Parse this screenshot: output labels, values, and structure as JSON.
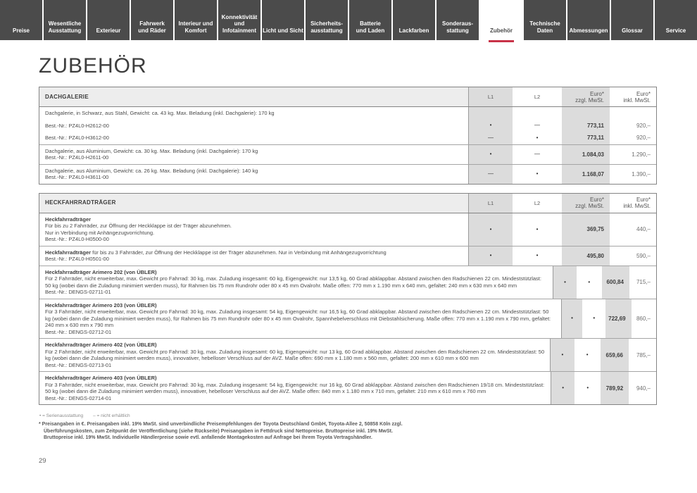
{
  "page": {
    "title": "ZUBEHÖR",
    "page_number": "29"
  },
  "tabs": [
    {
      "label": "Preise"
    },
    {
      "label": "Wesentliche\nAusstattung"
    },
    {
      "label": "Exterieur"
    },
    {
      "label": "Fahrwerk\nund Räder"
    },
    {
      "label": "Interieur und\nKomfort"
    },
    {
      "label": "Konnektivität\nund\nInfotainment"
    },
    {
      "label": "Licht und Sicht"
    },
    {
      "label": "Sicherheits-\nausstattung"
    },
    {
      "label": "Batterie\nund Laden"
    },
    {
      "label": "Lackfarben"
    },
    {
      "label": "Sonderaus-\nstattung"
    },
    {
      "label": "Zubehör",
      "active": true
    },
    {
      "label": "Technische\nDaten"
    },
    {
      "label": "Abmessungen"
    },
    {
      "label": "Glossar"
    },
    {
      "label": "Service"
    }
  ],
  "accent_color": "#c83248",
  "columns": {
    "l1": "L1",
    "l2": "L2",
    "net": "Euro*\nzzgl. MwSt.",
    "gross": "Euro*\ninkl. MwSt."
  },
  "tables": [
    {
      "title": "DACHGALERIE",
      "rows": [
        {
          "title": "",
          "desc": "Dachgalerie, in Schwarz, aus Stahl, Gewicht: ca. 43 kg. Max. Beladung (inkl. Dachgalerie): 170 kg",
          "bestnr": "",
          "l1": "",
          "l2": "",
          "net": "",
          "gross": ""
        },
        {
          "title": "",
          "desc": "",
          "bestnr": "Best.-Nr.: PZ4L0-H2612-00",
          "l1": "•",
          "l2": "—",
          "net": "773,11",
          "gross": "920,–"
        },
        {
          "title": "",
          "desc": "",
          "bestnr": "Best.-Nr.: PZ4L0-H3612-00",
          "l1": "—",
          "l2": "•",
          "net": "773,11",
          "gross": "920,–"
        },
        {
          "title": "",
          "desc": "Dachgalerie, aus Aluminium, Gewicht: ca. 30 kg. Max. Beladung (inkl. Dachgalerie): 170 kg",
          "bestnr": "Best.-Nr.: PZ4L0-H2611-00",
          "l1": "•",
          "l2": "—",
          "net": "1.084,03",
          "gross": "1.290,–"
        },
        {
          "title": "",
          "desc": "Dachgalerie, aus Aluminium, Gewicht: ca. 26 kg. Max. Beladung (inkl. Dachgalerie): 140 kg",
          "bestnr": "Best.-Nr.: PZ4L0-H3611-00",
          "l1": "—",
          "l2": "•",
          "net": "1.168,07",
          "gross": "1.390,–"
        }
      ]
    },
    {
      "title": "HECKFAHRRADTRÄGER",
      "rows": [
        {
          "title": "Heckfahrradträger",
          "desc": "\nFür bis zu 2 Fahrräder, zur Öffnung der Heckklappe ist der Träger abzunehmen.\nNur in Verbindung mit Anhängezugvorrichtung.",
          "bestnr": "Best.-Nr.: PZ4L0-H0500-00",
          "l1": "•",
          "l2": "•",
          "net": "369,75",
          "gross": "440,–"
        },
        {
          "title": "Heckfahrradträger",
          "desc": " für bis zu 3 Fahrräder, zur Öffnung der Heckklappe ist der Träger abzunehmen. Nur in Verbindung mit Anhängezugvorrichtung",
          "bestnr": "Best.-Nr.: PZ4L0-H0501-00",
          "l1": "•",
          "l2": "•",
          "net": "495,80",
          "gross": "590,–"
        },
        {
          "title": "Heckfahrradträger Arimero 202 (von ÜBLER)",
          "desc": "\nFür 2 Fahrräder, nicht erweiterbar, max. Gewicht pro Fahrrad: 30 kg, max. Zuladung insgesamt: 60 kg, Eigengewicht: nur 13,5 kg, 60 Grad abklappbar. Abstand zwischen den Radschienen 22 cm. Mindeststützlast: 50 kg (wobei dann die Zuladung minimiert werden muss), für Rahmen bis 75 mm Rundrohr oder 80 x 45 mm Ovalrohr. Maße offen: 770 mm x 1.190 mm x 640 mm, gefaltet: 240 mm x 630 mm x 640 mm",
          "bestnr": "Best.-Nr.: DENGS-02711-01",
          "l1": "•",
          "l2": "•",
          "net": "600,84",
          "gross": "715,–"
        },
        {
          "title": "Heckfahrradträger Arimero 203 (von ÜBLER)",
          "desc": "\nFür 3 Fahrräder, nicht erweiterbar, max. Gewicht pro Fahrrad: 30 kg, max. Zuladung insgesamt: 54 kg, Eigengewicht: nur 16,5 kg, 60 Grad abklappbar. Abstand zwischen den Radschienen 22 cm. Mindeststützlast: 50 kg (wobei dann die Zuladung minimiert werden muss), für Rahmen bis 75 mm Rundrohr oder 80 x 45 mm Ovalrohr, Spannhebelverschluss mit Diebstahlsicherung. Maße offen: 770 mm x 1.190 mm x 790 mm, gefaltet: 240 mm x 630 mm x 790 mm",
          "bestnr": "Best.-Nr.: DENGS-02712-01",
          "l1": "•",
          "l2": "•",
          "net": "722,69",
          "gross": "860,–"
        },
        {
          "title": "Heckfahrradträger Arimero 402 (von ÜBLER)",
          "desc": "\nFür 2 Fahrräder, nicht erweiterbar, max. Gewicht pro Fahrrad: 30 kg, max. Zuladung insgesamt: 60 kg, Eigengewicht: nur 13 kg, 60 Grad abklappbar. Abstand zwischen den Radschienen 22 cm. Mindeststützlast: 50 kg (wobei dann die Zuladung minimiert werden muss), innovativer, hebelloser Verschluss auf der AVZ. Maße offen: 690 mm x 1.180 mm x 560 mm, gefaltet: 200 mm x 610 mm x 600 mm",
          "bestnr": "Best.-Nr.: DENGS-02713-01",
          "l1": "•",
          "l2": "•",
          "net": "659,66",
          "gross": "785,–"
        },
        {
          "title": "Heckfahrradträger Arimero 403 (von ÜBLER)",
          "desc": "\nFür 3 Fahrräder, nicht erweiterbar, max. Gewicht pro Fahrrad: 30 kg, max. Zuladung insgesamt: 54 kg, Eigengewicht: nur 16 kg, 60 Grad abklappbar. Abstand zwischen den Radschienen 19/18 cm. Mindeststützlast: 50 kg (wobei dann die Zuladung minimiert werden muss), innovativer, hebelloser Verschluss auf der AVZ. Maße offen: 840 mm x 1.180 mm x 710 mm, gefaltet: 210 mm x 610 mm x 760 mm",
          "bestnr": "Best.-Nr.: DENGS-02714-01",
          "l1": "•",
          "l2": "•",
          "net": "789,92",
          "gross": "940,–"
        }
      ]
    }
  ],
  "footnotes": {
    "legend_standard": "• = Serienausstattung",
    "legend_not_available": "– = nicht erhältlich",
    "price_note": "* Preisangaben in €. Preisangaben inkl. 19% MwSt. sind unverbindliche Preisempfehlungen der Toyota Deutschland GmbH, Toyota-Allee 2, 50858 Köln zzgl.\nÜberführungskosten, zum Zeitpunkt der Veröffentlichung (siehe Rückseite) Preisangaben in Fettdruck sind Nettopreise. Bruttopreise inkl. 19% MwSt.\nBruttopreise inkl. 19% MwSt. Individuelle Händlerpreise sowie evtl. anfallende Montagekosten auf Anfrage bei Ihrem Toyota Vertragshändler."
  }
}
